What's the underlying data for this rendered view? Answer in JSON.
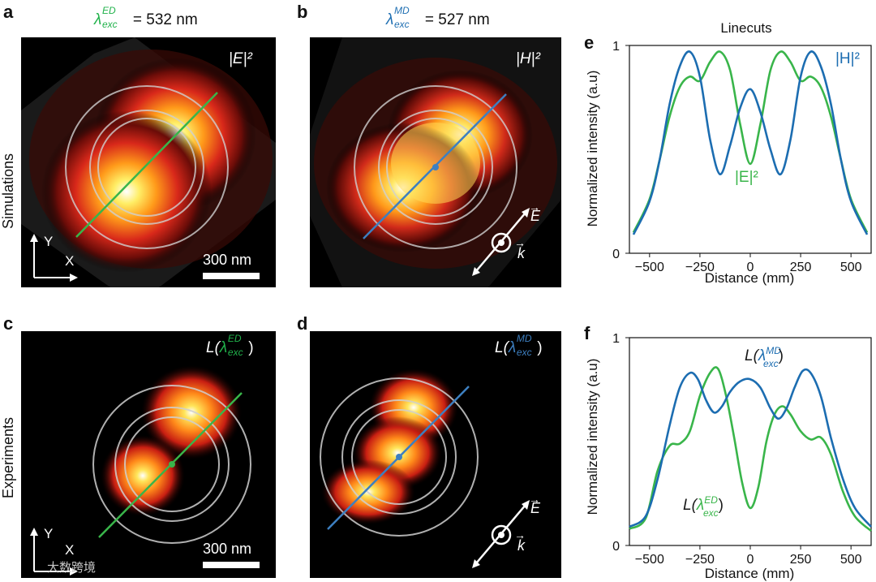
{
  "panels": {
    "a": {
      "letter": "a",
      "title_prefix": "λ",
      "title_sup": "ED",
      "title_sub": "exc",
      "title_rest": " = 532 nm",
      "field_label": "|E|²",
      "scale_text": "300 nm"
    },
    "b": {
      "letter": "b",
      "title_prefix": "λ",
      "title_sup": "MD",
      "title_sub": "exc",
      "title_rest": " = 527 nm",
      "field_label": "|H|²",
      "E_label": "E",
      "k_label": "k"
    },
    "c": {
      "letter": "c",
      "field_label_prefix": "L(",
      "field_label_sym": "λ",
      "field_label_sup": "ED",
      "field_label_sub": "exc",
      "field_label_suffix": ")",
      "scale_text": "300 nm"
    },
    "d": {
      "letter": "d",
      "field_label_prefix": "L(",
      "field_label_sym": "λ",
      "field_label_sup": "MD",
      "field_label_sub": "exc",
      "field_label_suffix": ")",
      "E_label": "E",
      "k_label": "k"
    },
    "e": {
      "letter": "e"
    },
    "f": {
      "letter": "f"
    }
  },
  "row_labels": {
    "top": "Simulations",
    "bottom": "Experiments"
  },
  "axes_labels": {
    "Y": "Y",
    "X": "X"
  },
  "watermark": "大数跨境",
  "colors": {
    "green": "#21b24b",
    "blue": "#1f6fb2",
    "line_green": "#39b54a",
    "line_blue": "#1c6db1"
  },
  "chart_data": [
    {
      "type": "line",
      "title": "Linecuts",
      "xlabel": "Distance (mm)",
      "ylabel": "Normalized intensity (a.u)",
      "xlim": [
        -600,
        600
      ],
      "ylim": [
        0,
        1
      ],
      "xticks": [
        -500,
        -250,
        0,
        250,
        500
      ],
      "xtick_labels": [
        "−500",
        "−250",
        "0",
        "250",
        "500"
      ],
      "yticks": [
        0,
        1
      ],
      "ytick_labels": [
        "0",
        "1"
      ],
      "series": [
        {
          "name": "|H|²",
          "color": "#1c6db1",
          "x": [
            -580,
            -500,
            -450,
            -400,
            -350,
            -300,
            -250,
            -200,
            -150,
            -100,
            -50,
            0,
            50,
            100,
            150,
            200,
            250,
            300,
            350,
            400,
            450,
            500,
            580
          ],
          "y": [
            0.09,
            0.25,
            0.45,
            0.72,
            0.9,
            0.97,
            0.85,
            0.55,
            0.38,
            0.52,
            0.7,
            0.79,
            0.68,
            0.5,
            0.38,
            0.55,
            0.85,
            0.97,
            0.9,
            0.72,
            0.45,
            0.25,
            0.09
          ]
        },
        {
          "name": "|E|²",
          "color": "#39b54a",
          "x": [
            -580,
            -500,
            -450,
            -400,
            -350,
            -300,
            -250,
            -200,
            -150,
            -100,
            -50,
            0,
            50,
            100,
            150,
            200,
            250,
            300,
            350,
            400,
            450,
            500,
            580
          ],
          "y": [
            0.1,
            0.26,
            0.45,
            0.66,
            0.8,
            0.85,
            0.83,
            0.92,
            0.97,
            0.88,
            0.62,
            0.43,
            0.62,
            0.88,
            0.97,
            0.92,
            0.83,
            0.85,
            0.8,
            0.66,
            0.45,
            0.26,
            0.1
          ]
        }
      ],
      "annotations": [
        {
          "text": "|H|²",
          "color": "#1c6db1"
        },
        {
          "text": "|E|²",
          "color": "#39b54a"
        }
      ]
    },
    {
      "type": "line",
      "xlabel": "Distance (mm)",
      "ylabel": "Normalized intensity (a.u)",
      "xlim": [
        -600,
        600
      ],
      "ylim": [
        0,
        1
      ],
      "xticks": [
        -500,
        -250,
        0,
        250,
        500
      ],
      "xtick_labels": [
        "−500",
        "−250",
        "0",
        "250",
        "500"
      ],
      "yticks": [
        0,
        1
      ],
      "ytick_labels": [
        "0",
        "1"
      ],
      "series": [
        {
          "name": "L(λexc MD)",
          "color": "#1c6db1",
          "x": [
            -600,
            -520,
            -460,
            -400,
            -350,
            -300,
            -260,
            -220,
            -180,
            -140,
            -100,
            -50,
            0,
            50,
            100,
            140,
            180,
            220,
            260,
            300,
            350,
            400,
            460,
            520,
            600
          ],
          "y": [
            0.09,
            0.14,
            0.32,
            0.58,
            0.76,
            0.83,
            0.8,
            0.7,
            0.64,
            0.67,
            0.74,
            0.79,
            0.8,
            0.76,
            0.66,
            0.61,
            0.66,
            0.76,
            0.84,
            0.83,
            0.72,
            0.52,
            0.32,
            0.18,
            0.09
          ]
        },
        {
          "name": "L(λexc ED)",
          "color": "#39b54a",
          "x": [
            -600,
            -520,
            -460,
            -400,
            -350,
            -300,
            -250,
            -200,
            -160,
            -120,
            -80,
            -40,
            0,
            40,
            80,
            120,
            160,
            200,
            250,
            300,
            350,
            400,
            460,
            520,
            600
          ],
          "y": [
            0.08,
            0.13,
            0.36,
            0.48,
            0.49,
            0.55,
            0.72,
            0.83,
            0.85,
            0.72,
            0.52,
            0.3,
            0.18,
            0.28,
            0.5,
            0.63,
            0.67,
            0.63,
            0.55,
            0.51,
            0.52,
            0.44,
            0.26,
            0.14,
            0.07
          ]
        }
      ],
      "annotations": [
        {
          "text": "L(λexc MD)",
          "color": "#1c6db1"
        },
        {
          "text": "L(λexc ED)",
          "color": "#39b54a"
        }
      ]
    }
  ]
}
